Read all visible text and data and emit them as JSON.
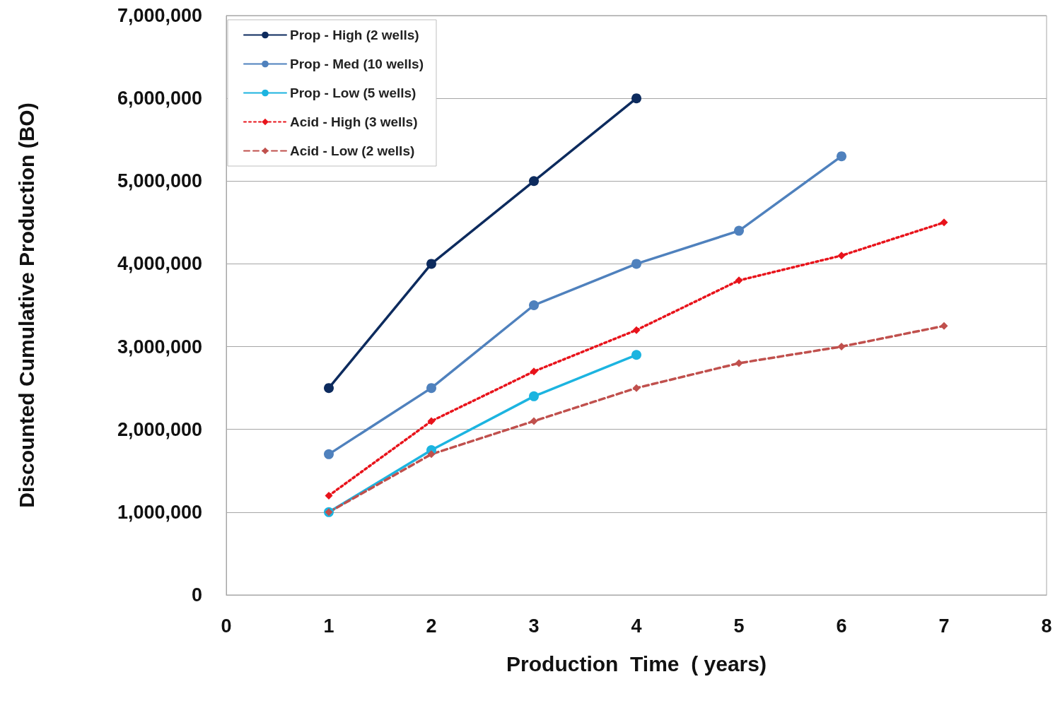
{
  "chart_data": {
    "type": "line",
    "xlabel": "Production  Time  ( years)",
    "ylabel": "Discounted Cumulative Production (BO)",
    "x": [
      1,
      2,
      3,
      4,
      5,
      6,
      7
    ],
    "series": [
      {
        "name": "Prop - High (2 wells)",
        "color": "#0d2b5e",
        "marker": "circle",
        "line_style": "solid",
        "values": [
          2500000,
          4000000,
          5000000,
          6000000,
          null,
          null,
          null
        ]
      },
      {
        "name": "Prop - Med (10 wells)",
        "color": "#4f81bd",
        "marker": "circle",
        "line_style": "solid",
        "values": [
          1700000,
          2500000,
          3500000,
          4000000,
          4400000,
          5300000,
          null
        ]
      },
      {
        "name": "Prop - Low (5 wells)",
        "color": "#1cb4e0",
        "marker": "circle",
        "line_style": "solid",
        "values": [
          1000000,
          1750000,
          2400000,
          2900000,
          null,
          null,
          null
        ]
      },
      {
        "name": "Acid - High (3 wells)",
        "color": "#e8131b",
        "marker": "diamond",
        "line_style": "dotted",
        "values": [
          1200000,
          2100000,
          2700000,
          3200000,
          3800000,
          4100000,
          4500000
        ]
      },
      {
        "name": "Acid - Low (2 wells)",
        "color": "#c0504d",
        "marker": "diamond",
        "line_style": "dashed",
        "values": [
          1000000,
          1700000,
          2100000,
          2500000,
          2800000,
          3000000,
          3250000
        ]
      }
    ],
    "xlim": [
      0,
      8
    ],
    "xticks": [
      0,
      1,
      2,
      3,
      4,
      5,
      6,
      7,
      8
    ],
    "ylim": [
      0,
      7000000
    ],
    "yticks": [
      0,
      {
        "value": 1000000,
        "label": "1,000,000"
      },
      {
        "value": 2000000,
        "label": "2,000,000"
      },
      {
        "value": 3000000,
        "label": "3,000,000"
      },
      {
        "value": 4000000,
        "label": "4,000,000"
      },
      {
        "value": 5000000,
        "label": "5,000,000"
      },
      {
        "value": 6000000,
        "label": "6,000,000"
      },
      {
        "value": 7000000,
        "label": "7,000,000"
      }
    ],
    "grid": "y",
    "legend": "top left"
  }
}
